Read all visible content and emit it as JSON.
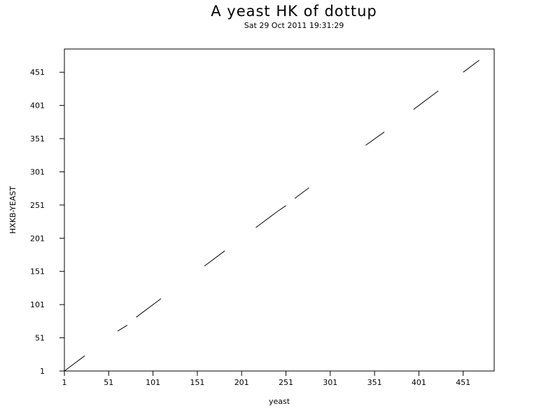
{
  "chart_data": {
    "type": "line",
    "title": "A yeast HK of dottup",
    "subtitle": "Sat 29 Oct 2011 19:31:29",
    "xlabel": "yeast",
    "ylabel": "HXKB-YEAST",
    "xlim": [
      1,
      486
    ],
    "ylim": [
      1,
      486
    ],
    "xticks": [
      "1",
      "51",
      "101",
      "151",
      "201",
      "251",
      "301",
      "351",
      "401",
      "451"
    ],
    "yticks": [
      "1",
      "51",
      "101",
      "151",
      "201",
      "251",
      "301",
      "351",
      "401",
      "451"
    ],
    "grid": false,
    "series": [
      {
        "segments": [
          {
            "x": [
              1,
              24
            ],
            "y": [
              1,
              24
            ]
          },
          {
            "x": [
              61,
              72
            ],
            "y": [
              61,
              70
            ]
          },
          {
            "x": [
              82,
              110
            ],
            "y": [
              82,
              110
            ]
          },
          {
            "x": [
              159,
              182
            ],
            "y": [
              159,
              182
            ]
          },
          {
            "x": [
              217,
              241
            ],
            "y": [
              217,
              241
            ]
          },
          {
            "x": [
              241,
              251
            ],
            "y": [
              241,
              250
            ]
          },
          {
            "x": [
              261,
              277
            ],
            "y": [
              261,
              277
            ]
          },
          {
            "x": [
              341,
              362
            ],
            "y": [
              341,
              361
            ]
          },
          {
            "x": [
              395,
              423
            ],
            "y": [
              395,
              423
            ]
          },
          {
            "x": [
              451,
              469
            ],
            "y": [
              451,
              469
            ]
          }
        ]
      }
    ]
  }
}
